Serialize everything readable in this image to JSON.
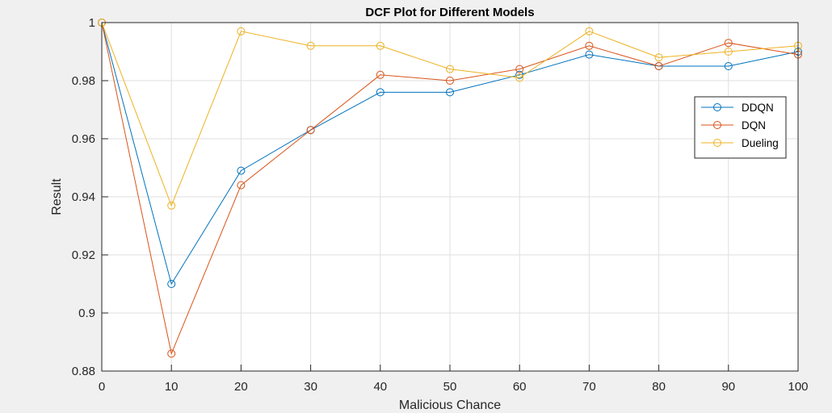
{
  "chart_data": {
    "type": "line",
    "title": "DCF Plot for Different Models",
    "xlabel": "Malicious Chance",
    "ylabel": "Result",
    "x": [
      0,
      10,
      20,
      30,
      40,
      50,
      60,
      70,
      80,
      90,
      100
    ],
    "xlim": [
      0,
      100
    ],
    "ylim": [
      0.88,
      1.0
    ],
    "xticks": [
      "0",
      "10",
      "20",
      "30",
      "40",
      "50",
      "60",
      "70",
      "80",
      "90",
      "100"
    ],
    "yticks": [
      "0.88",
      "0.9",
      "0.92",
      "0.94",
      "0.96",
      "0.98",
      "1"
    ],
    "grid": true,
    "legend_position": "top-right",
    "marker": "circle",
    "series": [
      {
        "name": "DDQN",
        "color": "#0072BD",
        "values": [
          1.0,
          0.91,
          0.949,
          0.963,
          0.976,
          0.976,
          0.982,
          0.989,
          0.985,
          0.985,
          0.99
        ]
      },
      {
        "name": "DQN",
        "color": "#D95319",
        "values": [
          1.0,
          0.886,
          0.944,
          0.963,
          0.982,
          0.98,
          0.984,
          0.992,
          0.985,
          0.993,
          0.989
        ]
      },
      {
        "name": "Dueling",
        "color": "#EDB120",
        "values": [
          1.0,
          0.937,
          0.997,
          0.992,
          0.992,
          0.984,
          0.981,
          0.997,
          0.988,
          0.99,
          0.992
        ]
      }
    ]
  }
}
